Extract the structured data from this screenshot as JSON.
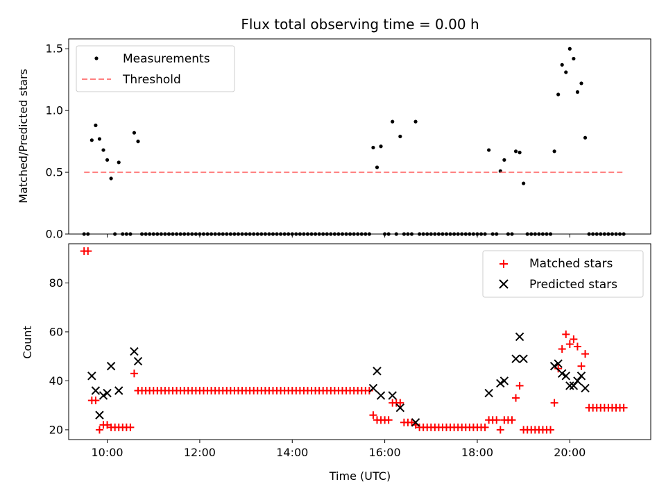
{
  "chart_data": [
    {
      "type": "scatter",
      "title": "Flux total observing time = 0.00 h",
      "xlabel": "",
      "ylabel": "Matched/Predicted stars",
      "xlim": [
        "09:10",
        "21:45"
      ],
      "ylim": [
        0,
        1.58
      ],
      "yticks": [
        0.0,
        0.5,
        1.0,
        1.5
      ],
      "ytick_labels": [
        "0.0",
        "0.5",
        "1.0",
        "1.5"
      ],
      "legend_position": "upper-left",
      "legend": [
        {
          "name": "Measurements",
          "marker": "dot",
          "color": "#000000"
        },
        {
          "name": "Threshold",
          "marker": "dashed-line",
          "color": "#ff7f7f"
        }
      ],
      "threshold": {
        "name": "Threshold",
        "value": 0.5,
        "x_start": "09:30",
        "x_end": "21:10"
      },
      "series": [
        {
          "name": "Measurements",
          "color": "#000000",
          "nonzero_points": [
            [
              "09:40",
              0.76
            ],
            [
              "09:45",
              0.88
            ],
            [
              "09:50",
              0.77
            ],
            [
              "09:55",
              0.68
            ],
            [
              "10:00",
              0.6
            ],
            [
              "10:05",
              0.45
            ],
            [
              "10:15",
              0.58
            ],
            [
              "10:35",
              0.82
            ],
            [
              "10:40",
              0.75
            ],
            [
              "15:45",
              0.7
            ],
            [
              "15:50",
              0.54
            ],
            [
              "15:55",
              0.71
            ],
            [
              "16:10",
              0.91
            ],
            [
              "16:20",
              0.79
            ],
            [
              "16:40",
              0.91
            ],
            [
              "18:15",
              0.68
            ],
            [
              "18:30",
              0.51
            ],
            [
              "18:35",
              0.6
            ],
            [
              "18:50",
              0.67
            ],
            [
              "18:55",
              0.66
            ],
            [
              "19:00",
              0.41
            ],
            [
              "19:40",
              0.67
            ],
            [
              "19:45",
              1.13
            ],
            [
              "19:50",
              1.37
            ],
            [
              "19:55",
              1.31
            ],
            [
              "20:00",
              1.5
            ],
            [
              "20:05",
              1.42
            ],
            [
              "20:10",
              1.15
            ],
            [
              "20:15",
              1.22
            ],
            [
              "20:20",
              0.78
            ]
          ],
          "zero_runs": [
            [
              "09:30",
              "09:35"
            ],
            [
              "10:10",
              "10:10"
            ],
            [
              "10:20",
              "10:30"
            ],
            [
              "10:45",
              "15:40"
            ],
            [
              "16:00",
              "16:05"
            ],
            [
              "16:15",
              "16:15"
            ],
            [
              "16:25",
              "16:35"
            ],
            [
              "16:45",
              "18:10"
            ],
            [
              "18:20",
              "18:25"
            ],
            [
              "18:40",
              "18:45"
            ],
            [
              "19:05",
              "19:35"
            ],
            [
              "20:25",
              "21:10"
            ]
          ]
        }
      ]
    },
    {
      "type": "scatter",
      "title": "",
      "xlabel": "Time (UTC)",
      "ylabel": "Count",
      "xlim": [
        "09:10",
        "21:45"
      ],
      "ylim": [
        16,
        96
      ],
      "yticks": [
        20,
        40,
        60,
        80
      ],
      "ytick_labels": [
        "20",
        "40",
        "60",
        "80"
      ],
      "xticks": [
        "10:00",
        "12:00",
        "14:00",
        "16:00",
        "18:00",
        "20:00"
      ],
      "xtick_labels": [
        "10:00",
        "12:00",
        "14:00",
        "16:00",
        "18:00",
        "20:00"
      ],
      "legend_position": "upper-right",
      "legend": [
        {
          "name": "Matched stars",
          "marker": "plus",
          "color": "#ff0000"
        },
        {
          "name": "Predicted stars",
          "marker": "x",
          "color": "#000000"
        }
      ],
      "series": [
        {
          "name": "Matched stars",
          "marker": "plus",
          "color": "#ff0000",
          "points": [
            [
              "09:30",
              93
            ],
            [
              "09:35",
              93
            ],
            [
              "09:40",
              32
            ],
            [
              "09:45",
              32
            ],
            [
              "09:50",
              20
            ],
            [
              "09:55",
              22
            ],
            [
              "10:00",
              22
            ],
            [
              "10:05",
              21
            ],
            [
              "10:10",
              21
            ],
            [
              "10:15",
              21
            ],
            [
              "10:20",
              21
            ],
            [
              "10:25",
              21
            ],
            [
              "10:30",
              21
            ],
            [
              "10:35",
              43
            ],
            [
              "10:40",
              36
            ],
            [
              "15:45",
              26
            ],
            [
              "15:50",
              24
            ],
            [
              "15:55",
              24
            ],
            [
              "16:00",
              24
            ],
            [
              "16:05",
              24
            ],
            [
              "16:10",
              31
            ],
            [
              "16:15",
              31
            ],
            [
              "16:20",
              31
            ],
            [
              "16:25",
              23
            ],
            [
              "16:30",
              23
            ],
            [
              "16:35",
              23
            ],
            [
              "16:40",
              22
            ],
            [
              "18:15",
              24
            ],
            [
              "18:20",
              24
            ],
            [
              "18:25",
              24
            ],
            [
              "18:30",
              20
            ],
            [
              "18:35",
              24
            ],
            [
              "18:40",
              24
            ],
            [
              "18:45",
              24
            ],
            [
              "18:50",
              33
            ],
            [
              "18:55",
              38
            ],
            [
              "19:00",
              20
            ],
            [
              "19:05",
              20
            ],
            [
              "19:10",
              20
            ],
            [
              "19:15",
              20
            ],
            [
              "19:20",
              20
            ],
            [
              "19:25",
              20
            ],
            [
              "19:30",
              20
            ],
            [
              "19:35",
              20
            ],
            [
              "19:40",
              31
            ],
            [
              "19:45",
              45
            ],
            [
              "19:50",
              53
            ],
            [
              "19:55",
              59
            ],
            [
              "20:00",
              55
            ],
            [
              "20:05",
              57
            ],
            [
              "20:10",
              54
            ],
            [
              "20:15",
              46
            ],
            [
              "20:20",
              51
            ],
            [
              "20:25",
              29
            ]
          ],
          "constant_runs": [
            {
              "from": "10:45",
              "to": "15:40",
              "value": 36
            },
            {
              "from": "16:45",
              "to": "18:10",
              "value": 21
            },
            {
              "from": "20:30",
              "to": "21:10",
              "value": 29
            }
          ]
        },
        {
          "name": "Predicted stars",
          "marker": "x",
          "color": "#000000",
          "points": [
            [
              "09:40",
              42
            ],
            [
              "09:45",
              36
            ],
            [
              "09:50",
              26
            ],
            [
              "09:55",
              34
            ],
            [
              "10:00",
              35
            ],
            [
              "10:05",
              46
            ],
            [
              "10:15",
              36
            ],
            [
              "10:35",
              52
            ],
            [
              "10:40",
              48
            ],
            [
              "15:45",
              37
            ],
            [
              "15:50",
              44
            ],
            [
              "15:55",
              34
            ],
            [
              "16:10",
              34
            ],
            [
              "16:20",
              29
            ],
            [
              "16:40",
              23
            ],
            [
              "18:15",
              35
            ],
            [
              "18:30",
              39
            ],
            [
              "18:35",
              40
            ],
            [
              "18:50",
              49
            ],
            [
              "18:55",
              58
            ],
            [
              "19:00",
              49
            ],
            [
              "19:40",
              46
            ],
            [
              "19:45",
              47
            ],
            [
              "19:50",
              43
            ],
            [
              "19:55",
              42
            ],
            [
              "20:00",
              38
            ],
            [
              "20:05",
              38
            ],
            [
              "20:10",
              40
            ],
            [
              "20:15",
              42
            ],
            [
              "20:20",
              37
            ]
          ]
        }
      ]
    }
  ]
}
